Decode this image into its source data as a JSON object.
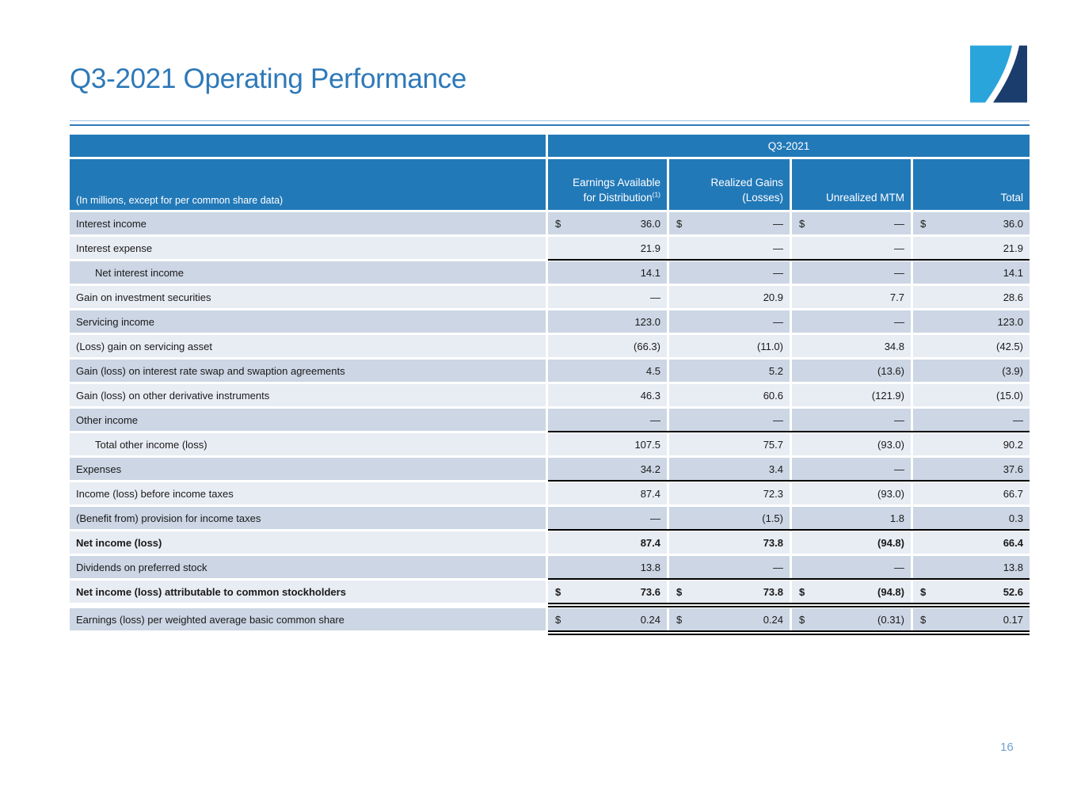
{
  "slide": {
    "title": "Q3-2021 Operating Performance",
    "page_number": "16"
  },
  "table": {
    "period": "Q3-2021",
    "note": "(In millions, except for per common share data)",
    "dollar_glyph": "$",
    "columns": [
      {
        "text": "Earnings Available\nfor Distribution",
        "sup": "(1)"
      },
      {
        "text": "Realized Gains\n(Losses)"
      },
      {
        "text": "Unrealized MTM"
      },
      {
        "text": "Total"
      }
    ],
    "rows": [
      {
        "label": "Interest income",
        "dollar": true,
        "values": [
          "36.0",
          "—",
          "—",
          "36.0"
        ]
      },
      {
        "label": "Interest expense",
        "values": [
          "21.9",
          "—",
          "—",
          "21.9"
        ],
        "border": "single"
      },
      {
        "label": "Net interest income",
        "indent": true,
        "values": [
          "14.1",
          "—",
          "—",
          "14.1"
        ]
      },
      {
        "label": "Gain on investment securities",
        "values": [
          "—",
          "20.9",
          "7.7",
          "28.6"
        ]
      },
      {
        "label": "Servicing income",
        "values": [
          "123.0",
          "—",
          "—",
          "123.0"
        ]
      },
      {
        "label": "(Loss) gain on servicing asset",
        "values": [
          "(66.3)",
          "(11.0)",
          "34.8",
          "(42.5)"
        ]
      },
      {
        "label": "Gain (loss) on interest rate swap and swaption agreements",
        "values": [
          "4.5",
          "5.2",
          "(13.6)",
          "(3.9)"
        ]
      },
      {
        "label": "Gain (loss) on other derivative instruments",
        "values": [
          "46.3",
          "60.6",
          "(121.9)",
          "(15.0)"
        ]
      },
      {
        "label": "Other income",
        "values": [
          "—",
          "—",
          "—",
          "—"
        ],
        "border": "single"
      },
      {
        "label": "Total other income (loss)",
        "indent": true,
        "values": [
          "107.5",
          "75.7",
          "(93.0)",
          "90.2"
        ]
      },
      {
        "label": "Expenses",
        "values": [
          "34.2",
          "3.4",
          "—",
          "37.6"
        ],
        "border": "single"
      },
      {
        "label": "Income (loss) before income taxes",
        "values": [
          "87.4",
          "72.3",
          "(93.0)",
          "66.7"
        ]
      },
      {
        "label": "(Benefit from) provision for income taxes",
        "values": [
          "—",
          "(1.5)",
          "1.8",
          "0.3"
        ],
        "border": "single"
      },
      {
        "label": "Net income (loss)",
        "bold": true,
        "values": [
          "87.4",
          "73.8",
          "(94.8)",
          "66.4"
        ]
      },
      {
        "label": "Dividends on preferred stock",
        "values": [
          "13.8",
          "—",
          "—",
          "13.8"
        ],
        "border": "single"
      },
      {
        "label": "Net income (loss) attributable to common stockholders",
        "bold": true,
        "dollar": true,
        "values": [
          "73.6",
          "73.8",
          "(94.8)",
          "52.6"
        ],
        "border": "double"
      },
      {
        "label": "Earnings (loss) per weighted average basic common share",
        "dollar": true,
        "values": [
          "0.24",
          "0.24",
          "(0.31)",
          "0.17"
        ],
        "border": "double"
      }
    ]
  },
  "colors": {
    "header_blue": "#2279b8",
    "title_blue": "#2e79b8",
    "row_dark": "#ccd6e4",
    "row_light": "#e8ecf3",
    "rule_light": "#9dc3e6",
    "page_num": "#70a0cc",
    "logo_light": "#29a5dc",
    "logo_navy": "#1b3d6d",
    "border_black": "#000000"
  }
}
